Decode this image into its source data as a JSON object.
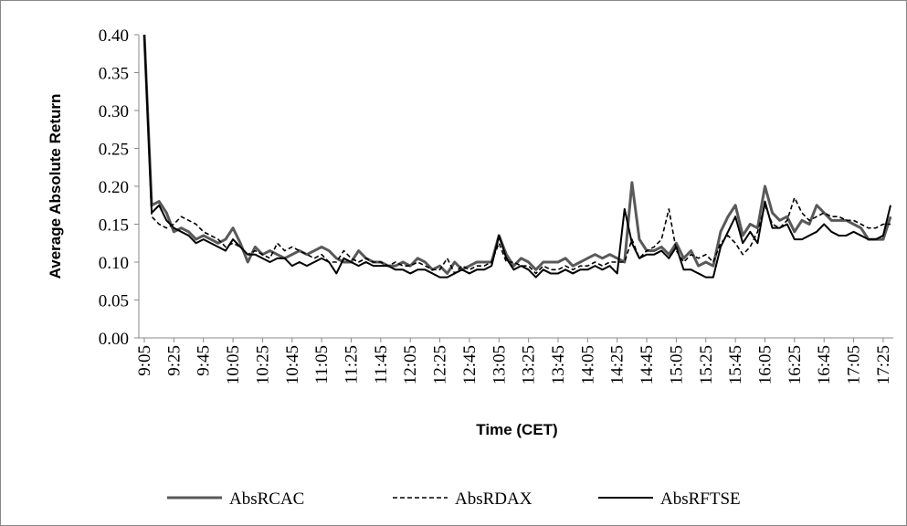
{
  "chart_data": {
    "type": "line",
    "xlabel": "Time (CET)",
    "ylabel": "Average Absolute Return",
    "categories": [
      "9:05",
      null,
      null,
      null,
      "9:25",
      null,
      null,
      null,
      "9:45",
      null,
      null,
      null,
      "10:05",
      null,
      null,
      null,
      "10:25",
      null,
      null,
      null,
      "10:45",
      null,
      null,
      null,
      "11:05",
      null,
      null,
      null,
      "11:25",
      null,
      null,
      null,
      "11:45",
      null,
      null,
      null,
      "12:05",
      null,
      null,
      null,
      "12:25",
      null,
      null,
      null,
      "12:45",
      null,
      null,
      null,
      "13:05",
      null,
      null,
      null,
      "13:25",
      null,
      null,
      null,
      "13:45",
      null,
      null,
      null,
      "14:05",
      null,
      null,
      null,
      "14:25",
      null,
      null,
      null,
      "14:45",
      null,
      null,
      null,
      "15:05",
      null,
      null,
      null,
      "15:25",
      null,
      null,
      null,
      "15:45",
      null,
      null,
      null,
      "16:05",
      null,
      null,
      null,
      "16:25",
      null,
      null,
      null,
      "16:45",
      null,
      null,
      null,
      "17:05",
      null,
      null,
      null,
      "17:25",
      null
    ],
    "ylim": [
      0,
      0.4
    ],
    "yticks": [
      {
        "value": 0,
        "label": "0.00"
      },
      {
        "value": 0.05,
        "label": "0.05"
      },
      {
        "value": 0.1,
        "label": "0.10"
      },
      {
        "value": 0.15,
        "label": "0.15"
      },
      {
        "value": 0.2,
        "label": "0.20"
      },
      {
        "value": 0.25,
        "label": "0.25"
      },
      {
        "value": 0.3,
        "label": "0.30"
      },
      {
        "value": 0.35,
        "label": "0.35"
      },
      {
        "value": 0.4,
        "label": "0.40"
      }
    ],
    "grid": false,
    "legend": "bottom",
    "series": [
      {
        "name": "AbsRCAC",
        "color": "#595959",
        "style": "solid",
        "values": [
          0.4,
          0.175,
          0.18,
          0.165,
          0.14,
          0.145,
          0.14,
          0.13,
          0.135,
          0.13,
          0.125,
          0.13,
          0.145,
          0.125,
          0.1,
          0.12,
          0.11,
          0.115,
          0.11,
          0.105,
          0.11,
          0.115,
          0.11,
          0.115,
          0.12,
          0.115,
          0.105,
          0.1,
          0.1,
          0.115,
          0.105,
          0.1,
          0.1,
          0.095,
          0.095,
          0.1,
          0.095,
          0.105,
          0.1,
          0.09,
          0.095,
          0.085,
          0.1,
          0.09,
          0.095,
          0.1,
          0.1,
          0.1,
          0.135,
          0.11,
          0.095,
          0.105,
          0.1,
          0.09,
          0.1,
          0.1,
          0.1,
          0.105,
          0.095,
          0.1,
          0.105,
          0.11,
          0.105,
          0.11,
          0.105,
          0.1,
          0.205,
          0.13,
          0.115,
          0.115,
          0.12,
          0.11,
          0.125,
          0.105,
          0.115,
          0.095,
          0.1,
          0.095,
          0.14,
          0.16,
          0.175,
          0.135,
          0.15,
          0.145,
          0.2,
          0.165,
          0.155,
          0.16,
          0.14,
          0.155,
          0.15,
          0.175,
          0.165,
          0.155,
          0.155,
          0.155,
          0.15,
          0.145,
          0.13,
          0.13,
          0.13,
          0.16
        ]
      },
      {
        "name": "AbsRDAX",
        "color": "#000000",
        "style": "dashed",
        "values": [
          0.4,
          0.16,
          0.15,
          0.145,
          0.15,
          0.16,
          0.155,
          0.15,
          0.14,
          0.135,
          0.13,
          0.12,
          0.125,
          0.12,
          0.11,
          0.115,
          0.11,
          0.105,
          0.125,
          0.115,
          0.12,
          0.115,
          0.11,
          0.105,
          0.11,
          0.1,
          0.1,
          0.115,
          0.105,
          0.1,
          0.105,
          0.1,
          0.1,
          0.095,
          0.1,
          0.095,
          0.095,
          0.1,
          0.095,
          0.09,
          0.09,
          0.105,
          0.085,
          0.095,
          0.09,
          0.095,
          0.095,
          0.1,
          0.125,
          0.1,
          0.1,
          0.095,
          0.095,
          0.085,
          0.095,
          0.09,
          0.09,
          0.095,
          0.09,
          0.095,
          0.095,
          0.1,
          0.095,
          0.1,
          0.1,
          0.1,
          0.13,
          0.105,
          0.115,
          0.12,
          0.13,
          0.17,
          0.115,
          0.1,
          0.11,
          0.105,
          0.11,
          0.1,
          0.125,
          0.135,
          0.125,
          0.11,
          0.12,
          0.14,
          0.175,
          0.15,
          0.145,
          0.155,
          0.185,
          0.165,
          0.155,
          0.16,
          0.165,
          0.16,
          0.16,
          0.155,
          0.155,
          0.15,
          0.145,
          0.145,
          0.15,
          0.15
        ]
      },
      {
        "name": "AbsRFTSE",
        "color": "#000000",
        "style": "solid",
        "values": [
          0.4,
          0.165,
          0.175,
          0.155,
          0.145,
          0.14,
          0.135,
          0.125,
          0.13,
          0.125,
          0.12,
          0.115,
          0.13,
          0.12,
          0.11,
          0.11,
          0.105,
          0.1,
          0.105,
          0.105,
          0.095,
          0.1,
          0.095,
          0.1,
          0.105,
          0.1,
          0.085,
          0.105,
          0.1,
          0.095,
          0.1,
          0.095,
          0.095,
          0.095,
          0.09,
          0.09,
          0.085,
          0.09,
          0.09,
          0.085,
          0.08,
          0.08,
          0.085,
          0.09,
          0.085,
          0.09,
          0.09,
          0.095,
          0.135,
          0.105,
          0.09,
          0.095,
          0.09,
          0.08,
          0.09,
          0.085,
          0.085,
          0.09,
          0.085,
          0.09,
          0.09,
          0.095,
          0.09,
          0.095,
          0.085,
          0.17,
          0.125,
          0.105,
          0.11,
          0.11,
          0.115,
          0.105,
          0.12,
          0.09,
          0.09,
          0.085,
          0.08,
          0.08,
          0.12,
          0.14,
          0.16,
          0.125,
          0.14,
          0.125,
          0.18,
          0.145,
          0.145,
          0.15,
          0.13,
          0.13,
          0.135,
          0.14,
          0.15,
          0.14,
          0.135,
          0.135,
          0.14,
          0.135,
          0.13,
          0.13,
          0.135,
          0.175
        ]
      }
    ]
  }
}
